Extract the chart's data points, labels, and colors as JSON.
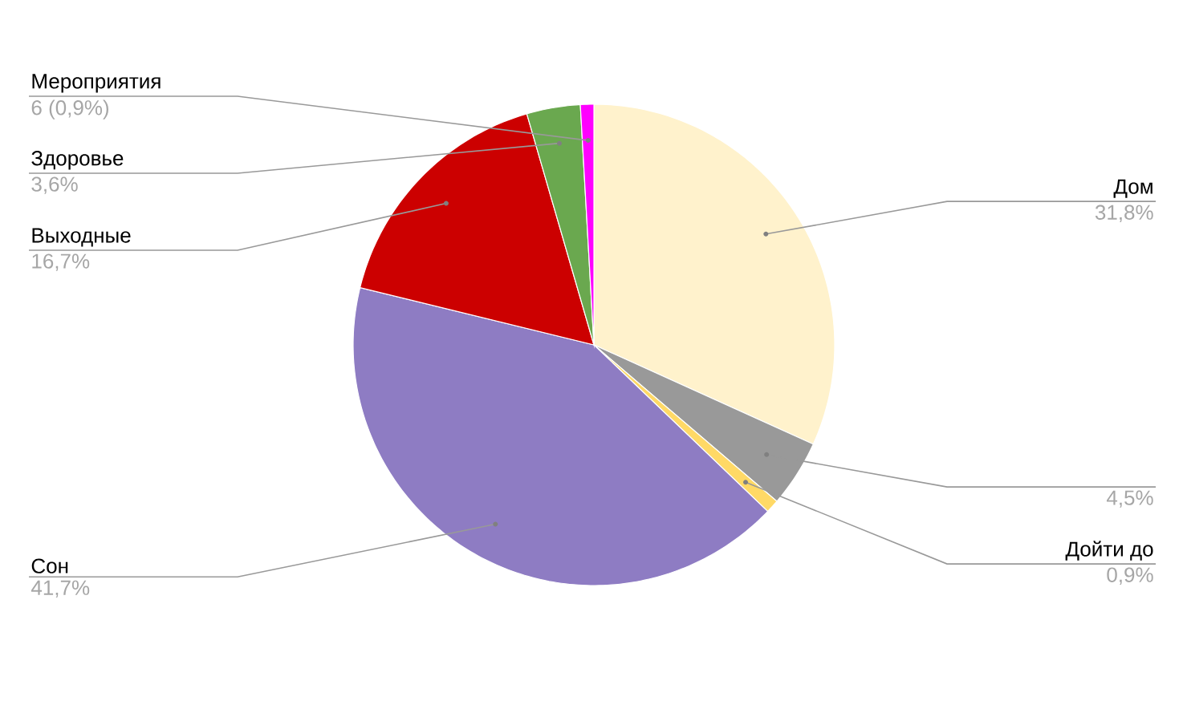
{
  "chart_data": {
    "type": "pie",
    "categories": [
      "Дом",
      null,
      "Дойти до",
      "Сон",
      "Выходные",
      "Здоровье",
      "Мероприятия"
    ],
    "values": [
      31.8,
      4.5,
      0.9,
      41.7,
      16.7,
      3.6,
      0.9
    ],
    "colors": [
      "#fff2cc",
      "#999999",
      "#ffd966",
      "#8e7cc3",
      "#cc0000",
      "#6aa84f",
      "#ff00ff"
    ],
    "value_labels": [
      "31,8%",
      "4,5%",
      "0,9%",
      "41,7%",
      "16,7%",
      "3,6%",
      "6 (0,9%)"
    ]
  }
}
